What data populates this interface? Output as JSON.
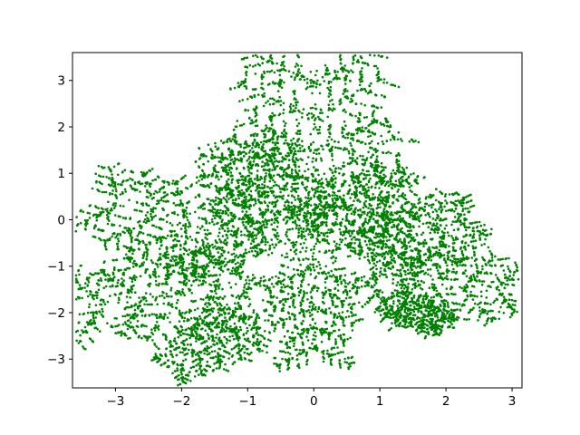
{
  "chart_data": {
    "type": "scatter",
    "title": "",
    "xlabel": "",
    "ylabel": "",
    "xlim": [
      -3.65,
      3.15
    ],
    "ylim": [
      -3.62,
      3.6
    ],
    "xticks": [
      -3,
      -2,
      -1,
      0,
      1,
      2,
      3
    ],
    "xtick_labels": [
      "−3",
      "−2",
      "−1",
      "0",
      "1",
      "2",
      "3"
    ],
    "yticks": [
      -3,
      -2,
      -1,
      0,
      1,
      2,
      3
    ],
    "ytick_labels": [
      "−3",
      "−2",
      "−1",
      "0",
      "1",
      "2",
      "3"
    ],
    "grid": false,
    "legend": "none",
    "series": [
      {
        "color": "#008000",
        "marker": "point",
        "description_points_sample": [
          [
            0.0,
            3.25
          ],
          [
            0.0,
            -2.95
          ],
          [
            -3.3,
            -1.8
          ],
          [
            2.8,
            -0.85
          ],
          [
            2.8,
            0.2
          ],
          [
            -3.0,
            0.75
          ],
          [
            -2.1,
            -3.15
          ],
          [
            -1.3,
            -3.25
          ],
          [
            1.6,
            2.0
          ],
          [
            -1.4,
            1.75
          ],
          [
            1.3,
            -2.2
          ],
          [
            -0.75,
            -2.05
          ],
          [
            0.3,
            -1.6
          ]
        ]
      }
    ]
  }
}
